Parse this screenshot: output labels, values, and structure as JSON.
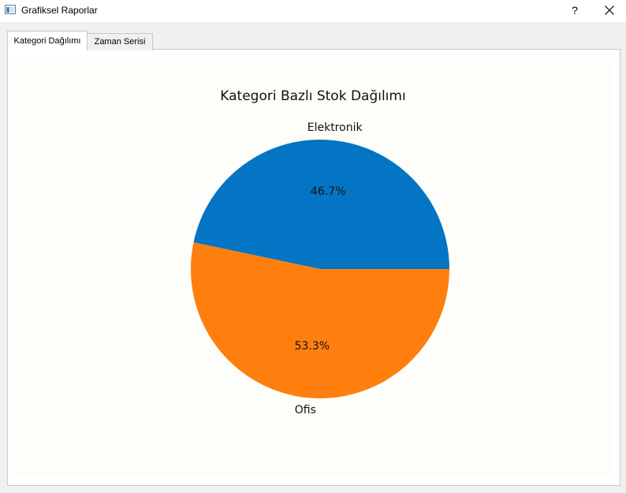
{
  "window": {
    "title": "Grafiksel Raporlar",
    "help_label": "?",
    "icon": "app-window-icon",
    "close_icon": "close-x-icon"
  },
  "tabs": [
    {
      "label": "Kategori Dağılımı",
      "active": true
    },
    {
      "label": "Zaman Serisi",
      "active": false
    }
  ],
  "chart_data": {
    "type": "pie",
    "title": "Kategori Bazlı Stok Dağılımı",
    "categories": [
      "Elektronik",
      "Ofis"
    ],
    "values": [
      46.7,
      53.3
    ],
    "value_labels": [
      "46.7%",
      "53.3%"
    ],
    "colors": [
      "#0474c4",
      "#ff7f0e"
    ],
    "start_angle_deg": 0,
    "direction": "counterclockwise"
  }
}
